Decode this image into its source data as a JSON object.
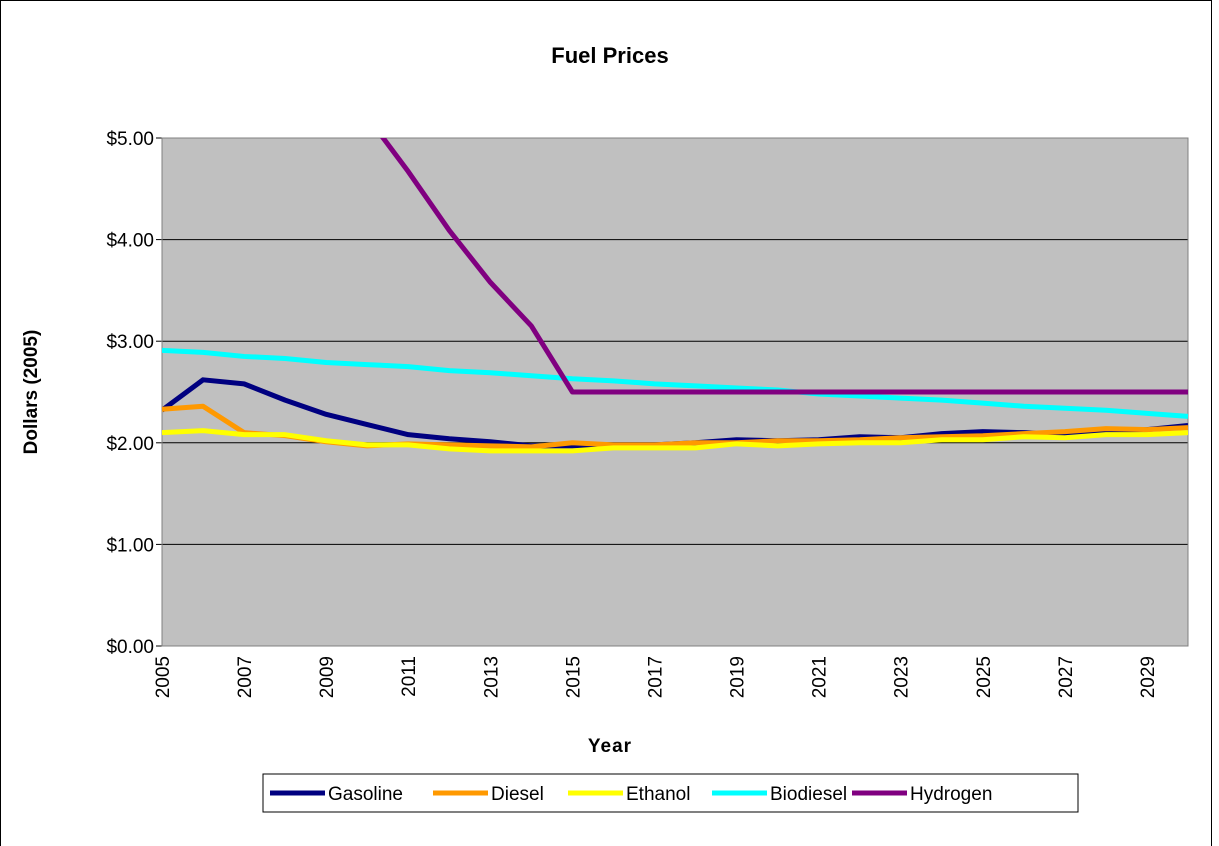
{
  "chart_data": {
    "type": "line",
    "title": "Fuel Prices",
    "x_label": "Year",
    "y_label": "Dollars (2005)",
    "categories": [
      "2005",
      null,
      "2007",
      null,
      "2009",
      null,
      "2011",
      null,
      "2013",
      null,
      "2015",
      null,
      "2017",
      null,
      "2019",
      null,
      "2021",
      null,
      "2023",
      null,
      "2025",
      null,
      "2027",
      null,
      "2029",
      null
    ],
    "series": [
      {
        "name": "Gasoline",
        "color": "#000080",
        "values": [
          2.32,
          2.62,
          2.58,
          2.42,
          2.28,
          2.18,
          2.08,
          2.04,
          2.01,
          1.97,
          1.97,
          1.98,
          1.98,
          2.0,
          2.03,
          2.02,
          2.03,
          2.06,
          2.05,
          2.09,
          2.11,
          2.1,
          2.08,
          2.12,
          2.13,
          2.17
        ]
      },
      {
        "name": "Diesel",
        "color": "#ff9900",
        "values": [
          2.33,
          2.36,
          2.1,
          2.07,
          2.01,
          1.97,
          1.99,
          1.98,
          1.97,
          1.96,
          2.0,
          1.98,
          1.98,
          2.0,
          2.0,
          2.02,
          2.02,
          2.03,
          2.05,
          2.06,
          2.07,
          2.09,
          2.11,
          2.14,
          2.13,
          2.15
        ]
      },
      {
        "name": "Ethanol",
        "color": "#ffff00",
        "values": [
          2.1,
          2.12,
          2.08,
          2.08,
          2.02,
          1.98,
          1.98,
          1.94,
          1.92,
          1.92,
          1.92,
          1.95,
          1.95,
          1.95,
          1.99,
          1.97,
          1.99,
          2.0,
          2.0,
          2.03,
          2.03,
          2.06,
          2.05,
          2.08,
          2.08,
          2.1
        ]
      },
      {
        "name": "Biodiesel",
        "color": "#00ffff",
        "values": [
          2.91,
          2.89,
          2.85,
          2.83,
          2.79,
          2.77,
          2.75,
          2.71,
          2.69,
          2.66,
          2.63,
          2.61,
          2.58,
          2.56,
          2.54,
          2.52,
          2.48,
          2.46,
          2.44,
          2.42,
          2.39,
          2.36,
          2.34,
          2.32,
          2.29,
          2.26
        ]
      },
      {
        "name": "Hydrogen",
        "color": "#800080",
        "values": [
          null,
          null,
          null,
          null,
          null,
          5.21,
          4.67,
          4.09,
          3.58,
          3.15,
          2.5,
          2.5,
          2.5,
          2.5,
          2.5,
          2.5,
          2.5,
          2.5,
          2.5,
          2.5,
          2.5,
          2.5,
          2.5,
          2.5,
          2.5,
          2.5
        ]
      }
    ],
    "ylim": [
      0,
      5
    ],
    "yticks": [
      {
        "value": 0,
        "label": "$0.00"
      },
      {
        "value": 1,
        "label": "$1.00"
      },
      {
        "value": 2,
        "label": "$2.00"
      },
      {
        "value": 3,
        "label": "$3.00"
      },
      {
        "value": 4,
        "label": "$4.00"
      },
      {
        "value": 5,
        "label": "$5.00"
      }
    ],
    "grid": true,
    "legend": "bottom"
  }
}
